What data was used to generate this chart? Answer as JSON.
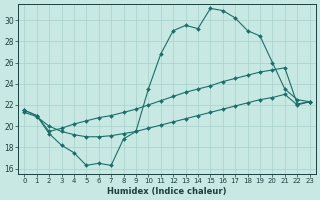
{
  "xlabel": "Humidex (Indice chaleur)",
  "xlim": [
    -0.5,
    23.5
  ],
  "ylim": [
    15.5,
    31.5
  ],
  "xticks": [
    0,
    1,
    2,
    3,
    4,
    5,
    6,
    7,
    8,
    9,
    10,
    11,
    12,
    13,
    14,
    15,
    16,
    17,
    18,
    19,
    20,
    21,
    22,
    23
  ],
  "yticks": [
    16,
    18,
    20,
    22,
    24,
    26,
    28,
    30
  ],
  "bg_color": "#c8e8e4",
  "line_color": "#1a6e6a",
  "grid_color": "#a8d0cc",
  "line_a_x": [
    0,
    1,
    2,
    3,
    4,
    5,
    6,
    7,
    8,
    9,
    10,
    11,
    12,
    13,
    14,
    15,
    16,
    17,
    18,
    19,
    20,
    21,
    22,
    23
  ],
  "line_a_y": [
    21.5,
    21.0,
    19.3,
    18.2,
    17.5,
    16.3,
    16.5,
    16.3,
    18.8,
    19.5,
    23.5,
    26.8,
    29.0,
    29.5,
    29.2,
    31.1,
    30.9,
    30.2,
    29.0,
    28.5,
    26.0,
    23.5,
    22.5,
    22.3
  ],
  "line_b_x": [
    0,
    1,
    2,
    3,
    4,
    5,
    6,
    7,
    8,
    9,
    10,
    11,
    12,
    13,
    14,
    15,
    16,
    17,
    18,
    19,
    20,
    21,
    22,
    23
  ],
  "line_b_y": [
    21.3,
    20.9,
    20.0,
    19.5,
    19.2,
    19.0,
    19.0,
    19.1,
    19.3,
    19.5,
    19.8,
    20.1,
    20.4,
    20.7,
    21.0,
    21.3,
    21.6,
    21.9,
    22.2,
    22.5,
    22.7,
    23.0,
    22.0,
    22.3
  ],
  "line_c_x": [
    0,
    1,
    2,
    3,
    4,
    5,
    6,
    7,
    8,
    9,
    10,
    11,
    12,
    13,
    14,
    15,
    16,
    17,
    18,
    19,
    20,
    21,
    22,
    23
  ],
  "line_c_y": [
    21.5,
    21.0,
    19.5,
    19.8,
    20.2,
    20.5,
    20.8,
    21.0,
    21.3,
    21.6,
    22.0,
    22.4,
    22.8,
    23.2,
    23.5,
    23.8,
    24.2,
    24.5,
    24.8,
    25.1,
    25.3,
    25.5,
    22.1,
    22.3
  ]
}
